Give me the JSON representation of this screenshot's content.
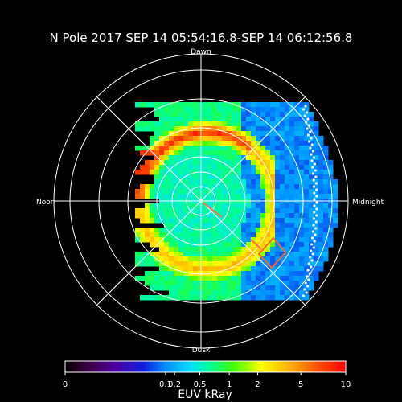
{
  "chart_data": {
    "type": "heatmap",
    "title": "N Pole 2017 SEP 14 05:54:16.8-SEP 14 06:12:56.8",
    "direction_labels": {
      "top": "Dawn",
      "left": "Noon",
      "right": "Midnight",
      "bottom": "Dusk"
    },
    "colorbar": {
      "label": "EUV kRay",
      "scale": "log",
      "range": [
        0,
        10
      ],
      "ticks": [
        "0",
        "0.1",
        "0.2",
        "0.5",
        "1",
        "2",
        "5",
        "10"
      ],
      "tick_values": [
        0,
        0.1,
        0.2,
        0.5,
        1,
        2,
        5,
        10
      ]
    },
    "grid": true,
    "polar_rings": 5,
    "annotations": [
      "orange line from pole",
      "orange diamond marker",
      "white dotted boundary on nightside"
    ]
  }
}
